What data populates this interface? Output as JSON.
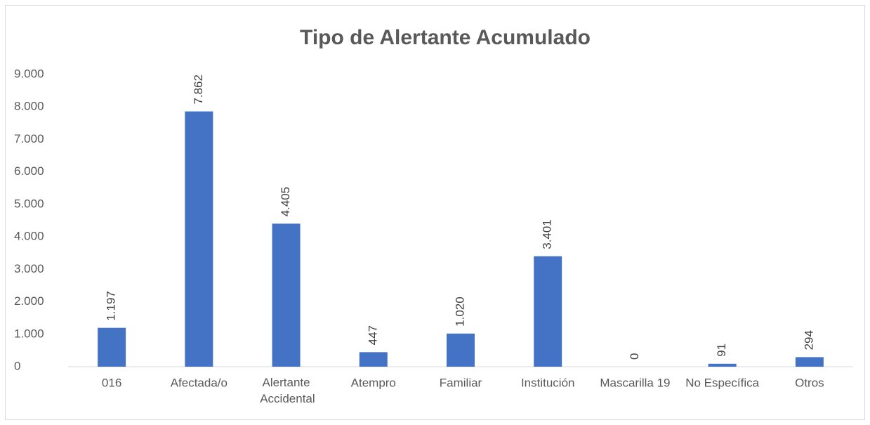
{
  "chart_data": {
    "type": "bar",
    "title": "Tipo de Alertante Acumulado",
    "categories": [
      "016",
      "Afectada/o",
      "Alertante Accidental",
      "Atempro",
      "Familiar",
      "Institución",
      "Mascarilla 19",
      "No Específica",
      "Otros"
    ],
    "values": [
      1197,
      7862,
      4405,
      447,
      1020,
      3401,
      0,
      91,
      294
    ],
    "value_labels": [
      "1.197",
      "7.862",
      "4.405",
      "447",
      "1.020",
      "3.401",
      "0",
      "91",
      "294"
    ],
    "color": "#4472c4",
    "ylim": [
      0,
      9000
    ],
    "yticks": [
      0,
      {
        "value": 1000,
        "label": "1.000"
      },
      {
        "value": 2000,
        "label": "2.000"
      },
      {
        "value": 3000,
        "label": "3.000"
      },
      {
        "value": 4000,
        "label": "4.000"
      },
      {
        "value": 5000,
        "label": "5.000"
      },
      {
        "value": 6000,
        "label": "6.000"
      },
      {
        "value": 7000,
        "label": "7.000"
      },
      {
        "value": 8000,
        "label": "8.000"
      },
      {
        "value": 9000,
        "label": "9.000"
      }
    ],
    "grid": false
  }
}
